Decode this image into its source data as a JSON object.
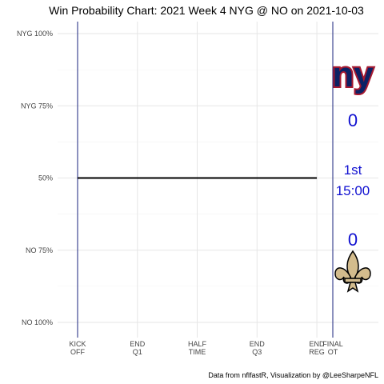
{
  "chart_data": {
    "type": "line",
    "title": "Win Probability Chart: 2021 Week 4 NYG @ NO on 2021-10-03",
    "caption": "Data from nflfastR, Visualization by @LeeSharpeNFL",
    "y_tick_labels": [
      "NYG 100%",
      "NYG 75%",
      "50%",
      "NO 75%",
      "NO 100%"
    ],
    "y_tick_values": [
      1.0,
      0.75,
      0.5,
      0.25,
      0.0
    ],
    "x_tick_labels": [
      [
        "KICK",
        "OFF"
      ],
      [
        "END",
        "Q1"
      ],
      [
        "HALF",
        "TIME"
      ],
      [
        "END",
        "Q3"
      ],
      [
        "END",
        "REG"
      ],
      [
        "FINAL",
        "OT"
      ]
    ],
    "x_tick_minutes": [
      0,
      15,
      30,
      45,
      60,
      64
    ],
    "ylim": [
      0,
      1
    ],
    "xlim": [
      0,
      64
    ],
    "grid": true,
    "series": [
      {
        "x": [
          0,
          60
        ],
        "y": [
          0.5,
          0.5
        ],
        "color": "#000000"
      }
    ],
    "vlines_minutes": [
      0,
      64
    ],
    "vline_color": "#1a237e"
  },
  "scoreboard": {
    "away_team": "NYG",
    "home_team": "NO",
    "away_logo_text": "ny",
    "away_score": "0",
    "home_score": "0",
    "quarter": "1st",
    "clock": "15:00",
    "score_color": "#1010d0",
    "away_logo_color": "#0b2265",
    "away_logo_outline": "#a71930",
    "home_logo_color": "#d3bc8d"
  }
}
